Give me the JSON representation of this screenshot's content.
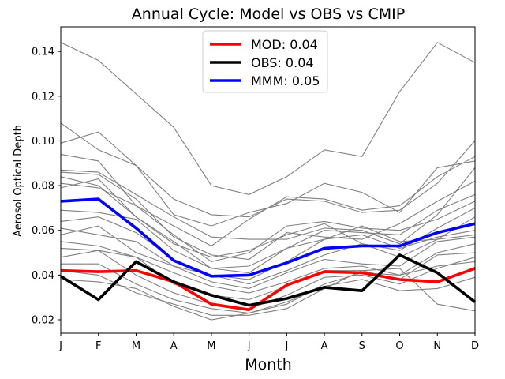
{
  "chart_data": {
    "type": "line",
    "title": "Annual Cycle: Model vs OBS vs CMIP",
    "xlabel": "Month",
    "ylabel": "Aerosol Optical Depth",
    "categories": [
      "J",
      "F",
      "M",
      "A",
      "M",
      "J",
      "J",
      "A",
      "S",
      "O",
      "N",
      "D"
    ],
    "ylim": [
      0.014,
      0.151
    ],
    "yticks": [
      "0.02",
      "0.04",
      "0.06",
      "0.08",
      "0.10",
      "0.12",
      "0.14"
    ],
    "legend_position": "upper center",
    "series": [
      {
        "name": "MOD",
        "legend_label": "MOD: 0.04",
        "color": "#ff0000",
        "values": [
          0.042,
          0.0415,
          0.042,
          0.037,
          0.027,
          0.0245,
          0.0355,
          0.0415,
          0.041,
          0.038,
          0.037,
          0.043
        ]
      },
      {
        "name": "OBS",
        "legend_label": "OBS: 0.04",
        "color": "#000000",
        "values": [
          0.0395,
          0.029,
          0.046,
          0.037,
          0.031,
          0.0265,
          0.0295,
          0.0345,
          0.033,
          0.049,
          0.041,
          0.028
        ]
      },
      {
        "name": "MMM",
        "legend_label": "MMM: 0.05",
        "color": "#0000ff",
        "values": [
          0.073,
          0.074,
          0.061,
          0.0465,
          0.0395,
          0.04,
          0.0455,
          0.052,
          0.053,
          0.053,
          0.059,
          0.063
        ]
      }
    ],
    "cmip_color": "#808080",
    "cmip_models": [
      [
        0.144,
        0.136,
        0.121,
        0.106,
        0.08,
        0.076,
        0.084,
        0.096,
        0.093,
        0.122,
        0.144,
        0.135
      ],
      [
        0.108,
        0.096,
        0.089,
        0.074,
        0.067,
        0.066,
        0.074,
        0.073,
        0.068,
        0.069,
        0.081,
        0.1
      ],
      [
        0.099,
        0.104,
        0.089,
        0.067,
        0.062,
        0.068,
        0.072,
        0.081,
        0.077,
        0.068,
        0.088,
        0.091
      ],
      [
        0.094,
        0.091,
        0.071,
        0.062,
        0.053,
        0.065,
        0.075,
        0.074,
        0.069,
        0.071,
        0.084,
        0.093
      ],
      [
        0.087,
        0.086,
        0.076,
        0.066,
        0.057,
        0.056,
        0.056,
        0.061,
        0.06,
        0.054,
        0.067,
        0.088
      ],
      [
        0.086,
        0.085,
        0.074,
        0.057,
        0.049,
        0.047,
        0.059,
        0.057,
        0.056,
        0.063,
        0.073,
        0.082
      ],
      [
        0.084,
        0.08,
        0.066,
        0.055,
        0.043,
        0.041,
        0.052,
        0.06,
        0.059,
        0.058,
        0.069,
        0.076
      ],
      [
        0.081,
        0.079,
        0.071,
        0.058,
        0.046,
        0.05,
        0.062,
        0.064,
        0.061,
        0.06,
        0.065,
        0.073
      ],
      [
        0.079,
        0.083,
        0.066,
        0.054,
        0.048,
        0.051,
        0.058,
        0.063,
        0.054,
        0.051,
        0.061,
        0.07
      ],
      [
        0.069,
        0.068,
        0.065,
        0.051,
        0.043,
        0.044,
        0.052,
        0.056,
        0.058,
        0.052,
        0.057,
        0.06
      ],
      [
        0.064,
        0.066,
        0.059,
        0.047,
        0.04,
        0.038,
        0.046,
        0.056,
        0.062,
        0.055,
        0.056,
        0.066
      ],
      [
        0.061,
        0.058,
        0.055,
        0.044,
        0.04,
        0.036,
        0.042,
        0.049,
        0.054,
        0.048,
        0.056,
        0.058
      ],
      [
        0.058,
        0.062,
        0.05,
        0.044,
        0.037,
        0.034,
        0.041,
        0.047,
        0.045,
        0.044,
        0.055,
        0.057
      ],
      [
        0.055,
        0.053,
        0.048,
        0.041,
        0.035,
        0.032,
        0.037,
        0.043,
        0.044,
        0.04,
        0.05,
        0.054
      ],
      [
        0.052,
        0.051,
        0.048,
        0.036,
        0.031,
        0.029,
        0.035,
        0.042,
        0.042,
        0.038,
        0.049,
        0.05
      ],
      [
        0.048,
        0.051,
        0.04,
        0.032,
        0.027,
        0.025,
        0.031,
        0.039,
        0.04,
        0.036,
        0.043,
        0.048
      ],
      [
        0.045,
        0.045,
        0.036,
        0.029,
        0.025,
        0.023,
        0.027,
        0.036,
        0.041,
        0.04,
        0.044,
        0.046
      ],
      [
        0.042,
        0.04,
        0.032,
        0.027,
        0.022,
        0.022,
        0.025,
        0.034,
        0.042,
        0.043,
        0.027,
        0.024
      ],
      [
        0.038,
        0.037,
        0.034,
        0.026,
        0.02,
        0.023,
        0.028,
        0.035,
        0.038,
        0.033,
        0.034,
        0.039
      ]
    ]
  }
}
